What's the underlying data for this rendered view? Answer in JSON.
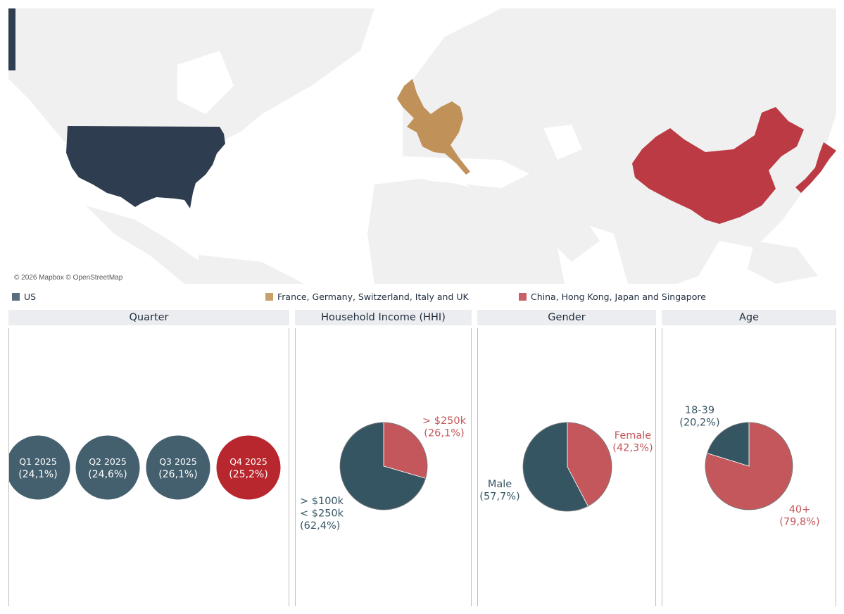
{
  "map": {
    "attribution": "© 2026 Mapbox © OpenStreetMap",
    "regions": [
      {
        "name": "US",
        "color": "#2e3d4f"
      },
      {
        "name": "France, Germany, Switzerland, Italy and UK",
        "color": "#c09158"
      },
      {
        "name": "China, Hong Kong, Japan and Singapore",
        "color": "#bb3a43"
      }
    ]
  },
  "legend": [
    {
      "label": "US",
      "color": "#5a6d82"
    },
    {
      "label": "France, Germany, Switzerland, Italy and UK",
      "color": "#c9a06a"
    },
    {
      "label": "China, Hong Kong, Japan and Singapore",
      "color": "#c95f67"
    }
  ],
  "panels": {
    "quarter": {
      "title": "Quarter"
    },
    "income": {
      "title": "Household Income (HHI)"
    },
    "gender": {
      "title": "Gender"
    },
    "age": {
      "title": "Age"
    }
  },
  "chart_data": [
    {
      "type": "bubble",
      "title": "Quarter",
      "categories": [
        "Q1 2025",
        "Q2 2025",
        "Q3 2025",
        "Q4 2025"
      ],
      "labels": [
        "(24,1%)",
        "(24,6%)",
        "(26,1%)",
        "(25,2%)"
      ],
      "values": [
        24.1,
        24.6,
        26.1,
        25.2
      ],
      "colors": [
        "#445f6e",
        "#445f6e",
        "#445f6e",
        "#b7272d"
      ]
    },
    {
      "type": "pie",
      "title": "Household Income (HHI)",
      "slices": [
        {
          "label_lines": [
            "> $250k",
            "(26,1%)"
          ],
          "value": 26.1,
          "color": "#c4575b"
        },
        {
          "label_lines": [
            "> $100k",
            "< $250k",
            "(62,4%)"
          ],
          "value": 62.4,
          "color": "#355563"
        }
      ]
    },
    {
      "type": "pie",
      "title": "Gender",
      "slices": [
        {
          "label_lines": [
            "Female",
            "(42,3%)"
          ],
          "value": 42.3,
          "color": "#c4575b"
        },
        {
          "label_lines": [
            "Male",
            "(57,7%)"
          ],
          "value": 57.7,
          "color": "#355563"
        }
      ]
    },
    {
      "type": "pie",
      "title": "Age",
      "slices": [
        {
          "label_lines": [
            "40+",
            "(79,8%)"
          ],
          "value": 79.8,
          "color": "#c4575b"
        },
        {
          "label_lines": [
            "18-39",
            "(20,2%)"
          ],
          "value": 20.2,
          "color": "#355563"
        }
      ]
    }
  ]
}
